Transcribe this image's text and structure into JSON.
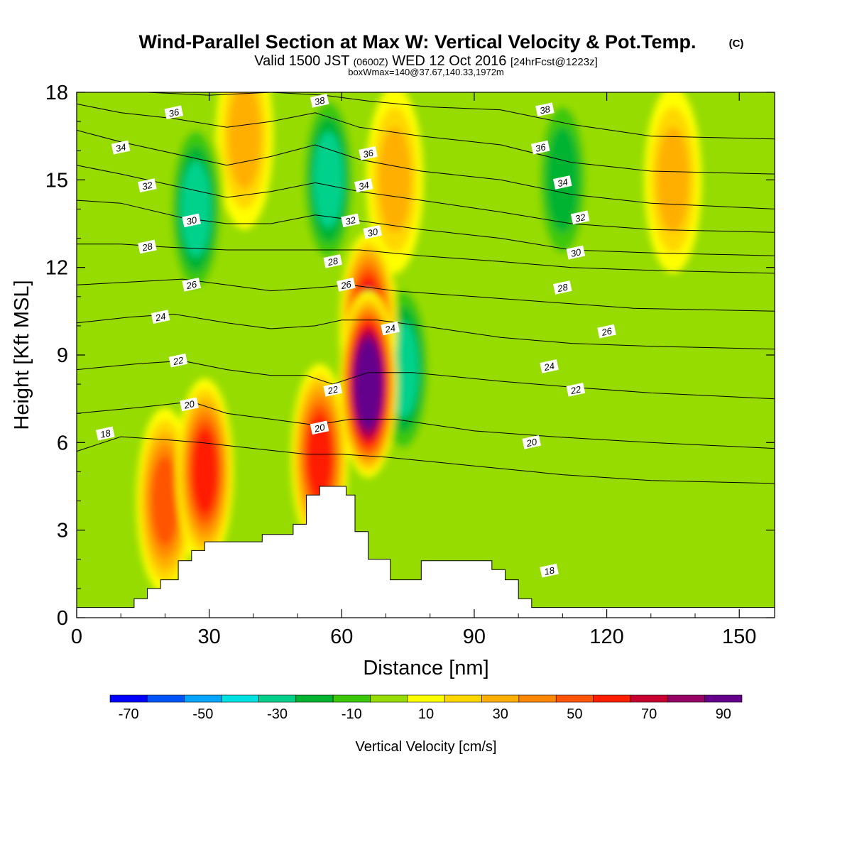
{
  "title": {
    "main": "Wind-Parallel Section at Max W: Vertical Velocity & Pot.Temp.",
    "copyright": "(C)",
    "valid_prefix": "Valid 1500 JST",
    "valid_utc": "(0600Z)",
    "valid_date": "WED 12 Oct 2016",
    "forecast": "[24hrFcst@1223z]",
    "box_info": "boxWmax=140@37.67,140.33,1972m"
  },
  "colorbar": {
    "label": "Vertical Velocity [cm/s]",
    "colors": [
      "#0000ff",
      "#0055ff",
      "#00a5ff",
      "#00e1e1",
      "#00d28c",
      "#00b432",
      "#3cc80a",
      "#96dc00",
      "#ffff00",
      "#ffd700",
      "#ffaf00",
      "#ff8700",
      "#ff5500",
      "#ff1e00",
      "#c80032",
      "#960064",
      "#64008c"
    ],
    "tick_labels": [
      "-70",
      "-50",
      "-30",
      "-10",
      "10",
      "30",
      "50",
      "70",
      "90"
    ]
  },
  "chart_data": {
    "type": "heatmap",
    "xlabel": "Distance [nm]",
    "ylabel": "Height [Kft MSL]",
    "xlim": [
      0,
      158
    ],
    "ylim": [
      0,
      18
    ],
    "x_ticks": [
      0,
      30,
      60,
      90,
      120,
      150
    ],
    "y_ticks": [
      0,
      3,
      6,
      9,
      12,
      15,
      18
    ],
    "filled_variable": "Vertical Velocity [cm/s]",
    "contour_variable": "Potential Temperature [C]",
    "vertical_velocity_features": [
      {
        "x": 66,
        "y": 8,
        "value": 95
      },
      {
        "x": 66,
        "y": 10,
        "value": 65
      },
      {
        "x": 29,
        "y": 5,
        "value": 55
      },
      {
        "x": 55,
        "y": 5.5,
        "value": 50
      },
      {
        "x": 20,
        "y": 4,
        "value": 40
      },
      {
        "x": 38,
        "y": 16.5,
        "value": 25
      },
      {
        "x": 72,
        "y": 15,
        "value": 25
      },
      {
        "x": 27,
        "y": 14,
        "value": -35
      },
      {
        "x": 57,
        "y": 15,
        "value": -35
      },
      {
        "x": 110,
        "y": 15,
        "value": -28
      },
      {
        "x": 74,
        "y": 8.5,
        "value": -30
      },
      {
        "x": 135,
        "y": 15,
        "value": 20
      }
    ],
    "terrain_kft": [
      [
        0,
        0.35
      ],
      [
        13,
        0.35
      ],
      [
        13,
        0.65
      ],
      [
        16,
        0.65
      ],
      [
        16,
        1.0
      ],
      [
        19,
        1.0
      ],
      [
        19,
        1.3
      ],
      [
        23,
        1.3
      ],
      [
        23,
        1.95
      ],
      [
        26,
        1.95
      ],
      [
        26,
        2.3
      ],
      [
        29,
        2.3
      ],
      [
        29,
        2.6
      ],
      [
        42,
        2.6
      ],
      [
        42,
        2.85
      ],
      [
        49,
        2.85
      ],
      [
        49,
        3.2
      ],
      [
        52,
        3.2
      ],
      [
        52,
        4.2
      ],
      [
        55,
        4.2
      ],
      [
        55,
        4.5
      ],
      [
        61,
        4.5
      ],
      [
        61,
        4.2
      ],
      [
        63,
        4.2
      ],
      [
        63,
        2.95
      ],
      [
        66,
        2.95
      ],
      [
        66,
        2.0
      ],
      [
        71,
        2.0
      ],
      [
        71,
        1.3
      ],
      [
        78,
        1.3
      ],
      [
        78,
        1.95
      ],
      [
        94,
        1.95
      ],
      [
        94,
        1.65
      ],
      [
        97,
        1.65
      ],
      [
        97,
        1.3
      ],
      [
        100,
        1.3
      ],
      [
        100,
        0.65
      ],
      [
        103,
        0.65
      ],
      [
        103,
        0.35
      ],
      [
        158,
        0.35
      ]
    ],
    "isentropes": [
      {
        "label": "18",
        "pts": [
          [
            0,
            5.7
          ],
          [
            10,
            6.2
          ],
          [
            20,
            6.1
          ],
          [
            28,
            6.0
          ],
          [
            40,
            5.8
          ],
          [
            52,
            5.6
          ],
          [
            60,
            5.6
          ],
          [
            70,
            5.5
          ],
          [
            90,
            5.2
          ],
          [
            110,
            4.9
          ],
          [
            130,
            4.7
          ],
          [
            158,
            4.6
          ]
        ]
      },
      {
        "label": "20",
        "pts": [
          [
            0,
            7.0
          ],
          [
            14,
            7.2
          ],
          [
            26,
            7.4
          ],
          [
            34,
            7.0
          ],
          [
            44,
            6.8
          ],
          [
            54,
            6.6
          ],
          [
            62,
            6.8
          ],
          [
            72,
            6.8
          ],
          [
            90,
            6.4
          ],
          [
            108,
            6.2
          ],
          [
            130,
            6.0
          ],
          [
            158,
            5.8
          ]
        ]
      },
      {
        "label": "22",
        "pts": [
          [
            0,
            8.5
          ],
          [
            14,
            8.7
          ],
          [
            24,
            8.8
          ],
          [
            34,
            8.5
          ],
          [
            44,
            8.3
          ],
          [
            52,
            8.3
          ],
          [
            58,
            8.0
          ],
          [
            66,
            8.4
          ],
          [
            76,
            8.4
          ],
          [
            96,
            8.1
          ],
          [
            112,
            7.9
          ],
          [
            130,
            7.7
          ],
          [
            158,
            7.5
          ]
        ]
      },
      {
        "label": "24",
        "pts": [
          [
            0,
            10.1
          ],
          [
            12,
            10.3
          ],
          [
            22,
            10.4
          ],
          [
            34,
            10.1
          ],
          [
            44,
            9.9
          ],
          [
            54,
            10.0
          ],
          [
            60,
            10.2
          ],
          [
            68,
            10.2
          ],
          [
            78,
            10.0
          ],
          [
            96,
            9.6
          ],
          [
            112,
            9.4
          ],
          [
            130,
            9.3
          ],
          [
            158,
            9.2
          ]
        ]
      },
      {
        "label": "26",
        "pts": [
          [
            0,
            11.4
          ],
          [
            12,
            11.5
          ],
          [
            24,
            11.6
          ],
          [
            34,
            11.4
          ],
          [
            44,
            11.2
          ],
          [
            54,
            11.3
          ],
          [
            62,
            11.4
          ],
          [
            72,
            11.2
          ],
          [
            90,
            11.0
          ],
          [
            108,
            10.8
          ],
          [
            126,
            10.6
          ],
          [
            158,
            10.5
          ]
        ]
      },
      {
        "label": "28",
        "pts": [
          [
            0,
            12.8
          ],
          [
            10,
            12.8
          ],
          [
            20,
            12.7
          ],
          [
            34,
            12.6
          ],
          [
            44,
            12.6
          ],
          [
            54,
            12.6
          ],
          [
            64,
            12.6
          ],
          [
            78,
            12.4
          ],
          [
            96,
            12.2
          ],
          [
            112,
            12.0
          ],
          [
            130,
            11.9
          ],
          [
            158,
            11.8
          ]
        ]
      },
      {
        "label": "30",
        "pts": [
          [
            0,
            14.3
          ],
          [
            10,
            14.2
          ],
          [
            24,
            13.7
          ],
          [
            34,
            13.5
          ],
          [
            44,
            13.5
          ],
          [
            54,
            13.8
          ],
          [
            64,
            13.6
          ],
          [
            78,
            13.3
          ],
          [
            96,
            13.0
          ],
          [
            112,
            12.6
          ],
          [
            130,
            12.5
          ],
          [
            158,
            12.4
          ]
        ]
      },
      {
        "label": "32",
        "pts": [
          [
            0,
            15.5
          ],
          [
            10,
            15.2
          ],
          [
            22,
            14.8
          ],
          [
            34,
            14.4
          ],
          [
            44,
            14.6
          ],
          [
            54,
            14.9
          ],
          [
            64,
            14.6
          ],
          [
            78,
            14.3
          ],
          [
            96,
            13.9
          ],
          [
            112,
            13.5
          ],
          [
            130,
            13.3
          ],
          [
            158,
            13.2
          ]
        ]
      },
      {
        "label": "34",
        "pts": [
          [
            0,
            16.7
          ],
          [
            10,
            16.3
          ],
          [
            22,
            15.9
          ],
          [
            34,
            15.5
          ],
          [
            44,
            15.8
          ],
          [
            54,
            16.2
          ],
          [
            64,
            15.7
          ],
          [
            78,
            15.3
          ],
          [
            96,
            15.0
          ],
          [
            112,
            14.5
          ],
          [
            130,
            14.2
          ],
          [
            158,
            14.0
          ]
        ]
      },
      {
        "label": "36",
        "pts": [
          [
            0,
            17.6
          ],
          [
            10,
            17.3
          ],
          [
            22,
            17.1
          ],
          [
            34,
            16.8
          ],
          [
            44,
            17.0
          ],
          [
            54,
            17.3
          ],
          [
            64,
            16.8
          ],
          [
            78,
            16.5
          ],
          [
            96,
            16.2
          ],
          [
            112,
            15.6
          ],
          [
            130,
            15.3
          ],
          [
            158,
            15.2
          ]
        ]
      },
      {
        "label": "38",
        "pts": [
          [
            16,
            18.0
          ],
          [
            30,
            17.9
          ],
          [
            44,
            18.0
          ],
          [
            56,
            17.9
          ],
          [
            66,
            17.7
          ],
          [
            80,
            17.5
          ],
          [
            96,
            17.4
          ],
          [
            112,
            16.9
          ],
          [
            130,
            16.5
          ],
          [
            158,
            16.4
          ]
        ]
      }
    ],
    "contour_labels": [
      {
        "text": "18",
        "x": 6.5,
        "y": 6.3
      },
      {
        "text": "20",
        "x": 25.5,
        "y": 7.3
      },
      {
        "text": "22",
        "x": 23,
        "y": 8.8
      },
      {
        "text": "24",
        "x": 19,
        "y": 10.3
      },
      {
        "text": "26",
        "x": 26,
        "y": 11.4
      },
      {
        "text": "28",
        "x": 16,
        "y": 12.7
      },
      {
        "text": "30",
        "x": 26,
        "y": 13.6
      },
      {
        "text": "32",
        "x": 16,
        "y": 14.8
      },
      {
        "text": "34",
        "x": 10,
        "y": 16.1
      },
      {
        "text": "36",
        "x": 22,
        "y": 17.3
      },
      {
        "text": "38",
        "x": 55,
        "y": 17.7
      },
      {
        "text": "36",
        "x": 66,
        "y": 15.9
      },
      {
        "text": "34",
        "x": 65,
        "y": 14.8
      },
      {
        "text": "32",
        "x": 62,
        "y": 13.6
      },
      {
        "text": "30",
        "x": 67,
        "y": 13.2
      },
      {
        "text": "28",
        "x": 58,
        "y": 12.2
      },
      {
        "text": "26",
        "x": 61,
        "y": 11.4
      },
      {
        "text": "24",
        "x": 71,
        "y": 9.9
      },
      {
        "text": "22",
        "x": 58,
        "y": 7.8
      },
      {
        "text": "20",
        "x": 55,
        "y": 6.5
      },
      {
        "text": "38",
        "x": 106,
        "y": 17.4
      },
      {
        "text": "36",
        "x": 105,
        "y": 16.1
      },
      {
        "text": "34",
        "x": 110,
        "y": 14.9
      },
      {
        "text": "32",
        "x": 114,
        "y": 13.7
      },
      {
        "text": "30",
        "x": 113,
        "y": 12.5
      },
      {
        "text": "28",
        "x": 110,
        "y": 11.3
      },
      {
        "text": "26",
        "x": 120,
        "y": 9.8
      },
      {
        "text": "24",
        "x": 107,
        "y": 8.6
      },
      {
        "text": "22",
        "x": 113,
        "y": 7.8
      },
      {
        "text": "20",
        "x": 103,
        "y": 6.0
      },
      {
        "text": "18",
        "x": 107,
        "y": 1.6
      }
    ]
  }
}
